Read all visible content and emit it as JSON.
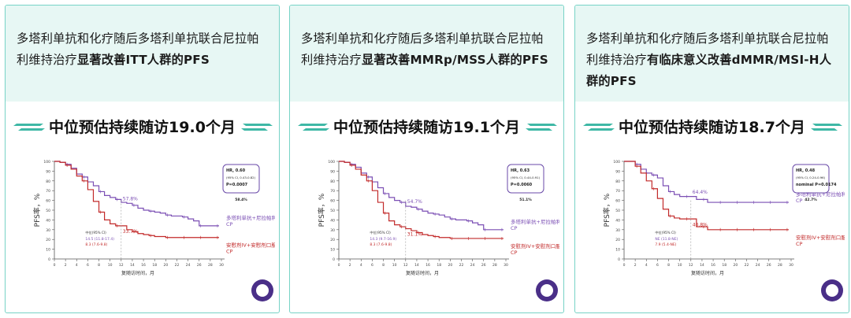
{
  "panels": [
    {
      "headline_plain": "多塔利单抗和化疗随后多塔利单抗联合尼拉帕利维持治疗",
      "headline_bold": "显著改善ITT人群的PFS",
      "banner": "中位预估持续随访19.0个月",
      "chart_data": {
        "type": "line",
        "ylabel": "PFS率，%",
        "xlabel": "复随访时间，月",
        "xlim": [
          0,
          30
        ],
        "ylim": [
          0,
          100
        ],
        "x_ticks": [
          0,
          2,
          4,
          6,
          8,
          10,
          12,
          14,
          16,
          18,
          20,
          22,
          24,
          26,
          28,
          30
        ],
        "y_ticks": [
          0,
          10,
          20,
          30,
          40,
          50,
          60,
          70,
          80,
          90,
          100
        ],
        "stats_box": [
          "HR, 0.60",
          "(95% CI, 0.43-0.82)",
          "P=0.0007"
        ],
        "stats_note": "58.4%",
        "series": [
          {
            "name": "多塔利单抗+尼拉帕利+CP",
            "color": "#7b4fb4",
            "x": [
              0,
              1,
              2,
              3,
              4,
              5,
              6,
              7,
              8,
              9,
              10,
              11,
              12,
              13,
              14,
              15,
              16,
              17,
              18,
              19,
              20,
              21,
              22,
              23,
              24,
              25,
              26,
              27,
              28,
              29
            ],
            "y": [
              100,
              99,
              97,
              93,
              87,
              84,
              79,
              75,
              69,
              65,
              63,
              61,
              58,
              57,
              55,
              52,
              50,
              49,
              48,
              47,
              45,
              44,
              44,
              43,
              41,
              39,
              34,
              34,
              34,
              34
            ]
          },
          {
            "name": "安慰剂IV+安慰剂口服+CP",
            "color": "#c22a2a",
            "x": [
              0,
              1,
              2,
              3,
              4,
              5,
              6,
              7,
              8,
              9,
              10,
              11,
              12,
              13,
              14,
              15,
              16,
              17,
              18,
              19,
              20,
              21,
              22,
              23,
              24,
              25,
              26,
              27,
              28,
              29
            ],
            "y": [
              100,
              99,
              96,
              92,
              85,
              80,
              71,
              59,
              48,
              40,
              36,
              34,
              34,
              30,
              28,
              26,
              25,
              24,
              23,
              23,
              22,
              22,
              22,
              22,
              22,
              22,
              22,
              22,
              22,
              22
            ]
          }
        ],
        "annotations": [
          "57.8%",
          "33.7%"
        ],
        "median_box": [
          "中位(95% CI)",
          "14.5 (11.8-17.4)",
          "8.3 (7.6-9.8)"
        ]
      }
    },
    {
      "headline_plain": "多塔利单抗和化疗随后多塔利单抗联合尼拉帕利维持治疗",
      "headline_bold": "显著改善MMRp/MSS人群的PFS",
      "banner": "中位预估持续随访19.1个月",
      "chart_data": {
        "type": "line",
        "ylabel": "PFS率，%",
        "xlabel": "复随访时间，月",
        "xlim": [
          0,
          30
        ],
        "ylim": [
          0,
          100
        ],
        "x_ticks": [
          0,
          2,
          4,
          6,
          8,
          10,
          12,
          14,
          16,
          18,
          20,
          22,
          24,
          26,
          28,
          30
        ],
        "y_ticks": [
          0,
          10,
          20,
          30,
          40,
          50,
          60,
          70,
          80,
          90,
          100
        ],
        "stats_box": [
          "HR, 0.63",
          "(95% CI, 0.44-0.91)",
          "P=0.0060"
        ],
        "stats_note": "51.1%",
        "series": [
          {
            "name": "多塔利单抗+尼拉帕利+CP",
            "color": "#7b4fb4",
            "x": [
              0,
              1,
              2,
              3,
              4,
              5,
              6,
              7,
              8,
              9,
              10,
              11,
              12,
              13,
              14,
              15,
              16,
              17,
              18,
              19,
              20,
              21,
              22,
              23,
              24,
              25,
              26,
              27,
              28,
              29
            ],
            "y": [
              100,
              99,
              97,
              94,
              88,
              84,
              79,
              73,
              67,
              63,
              60,
              58,
              54,
              53,
              51,
              49,
              47,
              46,
              45,
              43,
              41,
              40,
              40,
              39,
              37,
              35,
              30,
              30,
              30,
              30
            ]
          },
          {
            "name": "安慰剂IV+安慰剂口服+CP",
            "color": "#c22a2a",
            "x": [
              0,
              1,
              2,
              3,
              4,
              5,
              6,
              7,
              8,
              9,
              10,
              11,
              12,
              13,
              14,
              15,
              16,
              17,
              18,
              19,
              20,
              21,
              22,
              23,
              24,
              25,
              26,
              27,
              28,
              29
            ],
            "y": [
              100,
              99,
              96,
              92,
              86,
              80,
              70,
              58,
              47,
              39,
              35,
              33,
              31,
              29,
              27,
              25,
              24,
              23,
              22,
              22,
              21,
              21,
              21,
              21,
              21,
              21,
              21,
              21,
              21,
              21
            ]
          }
        ],
        "annotations": [
          "54.7%",
          "31.1%"
        ],
        "median_box": [
          "中位(95% CI)",
          "14.3 (9.7-16.9)",
          "8.3 (7.6-9.8)"
        ]
      }
    },
    {
      "headline_plain": "多塔利单抗和化疗随后多塔利单抗联合尼拉帕利维持治疗",
      "headline_bold": "有临床意义改善dMMR/MSI-H人群的PFS",
      "banner": "中位预估持续随访18.7个月",
      "chart_data": {
        "type": "line",
        "ylabel": "PFS率，%",
        "xlabel": "复随访时间，月",
        "xlim": [
          0,
          30
        ],
        "ylim": [
          0,
          100
        ],
        "x_ticks": [
          0,
          2,
          4,
          6,
          8,
          10,
          12,
          14,
          16,
          18,
          20,
          22,
          24,
          26,
          28,
          30
        ],
        "y_ticks": [
          0,
          10,
          20,
          30,
          40,
          50,
          60,
          70,
          80,
          90,
          100
        ],
        "stats_box": [
          "HR, 0.48",
          "(95% CI, 0.24-0.96)",
          "nominal P=0.0174"
        ],
        "stats_note": "42.7%",
        "series": [
          {
            "name": "多塔利单抗+尼拉帕利+CP",
            "color": "#7b4fb4",
            "x": [
              0,
              1,
              2,
              3,
              4,
              5,
              6,
              7,
              8,
              9,
              10,
              11,
              12,
              13,
              14,
              15,
              16,
              17,
              18,
              19,
              20,
              21,
              22,
              23,
              24,
              25,
              26,
              27,
              28,
              29
            ],
            "y": [
              100,
              100,
              97,
              92,
              88,
              86,
              83,
              75,
              69,
              66,
              64,
              64,
              64,
              61,
              61,
              58,
              58,
              58,
              58,
              58,
              58,
              58,
              58,
              58,
              58,
              58,
              58,
              58,
              58,
              58
            ]
          },
          {
            "name": "安慰剂IV+安慰剂口服+CP",
            "color": "#c22a2a",
            "x": [
              0,
              1,
              2,
              3,
              4,
              5,
              6,
              7,
              8,
              9,
              10,
              11,
              12,
              13,
              14,
              15,
              16,
              17,
              18,
              19,
              20,
              21,
              22,
              23,
              24,
              25,
              26,
              27,
              28,
              29
            ],
            "y": [
              100,
              100,
              95,
              88,
              80,
              72,
              62,
              51,
              44,
              42,
              41,
              41,
              41,
              33,
              33,
              30,
              30,
              30,
              30,
              30,
              30,
              30,
              30,
              30,
              30,
              30,
              30,
              30,
              30,
              30
            ]
          }
        ],
        "annotations": [
          "64.4%",
          "40.8%"
        ],
        "median_box": [
          "中位(95% CI)",
          "NE (11.8-NE)",
          "7.9 (5.4-NE)"
        ]
      }
    }
  ]
}
